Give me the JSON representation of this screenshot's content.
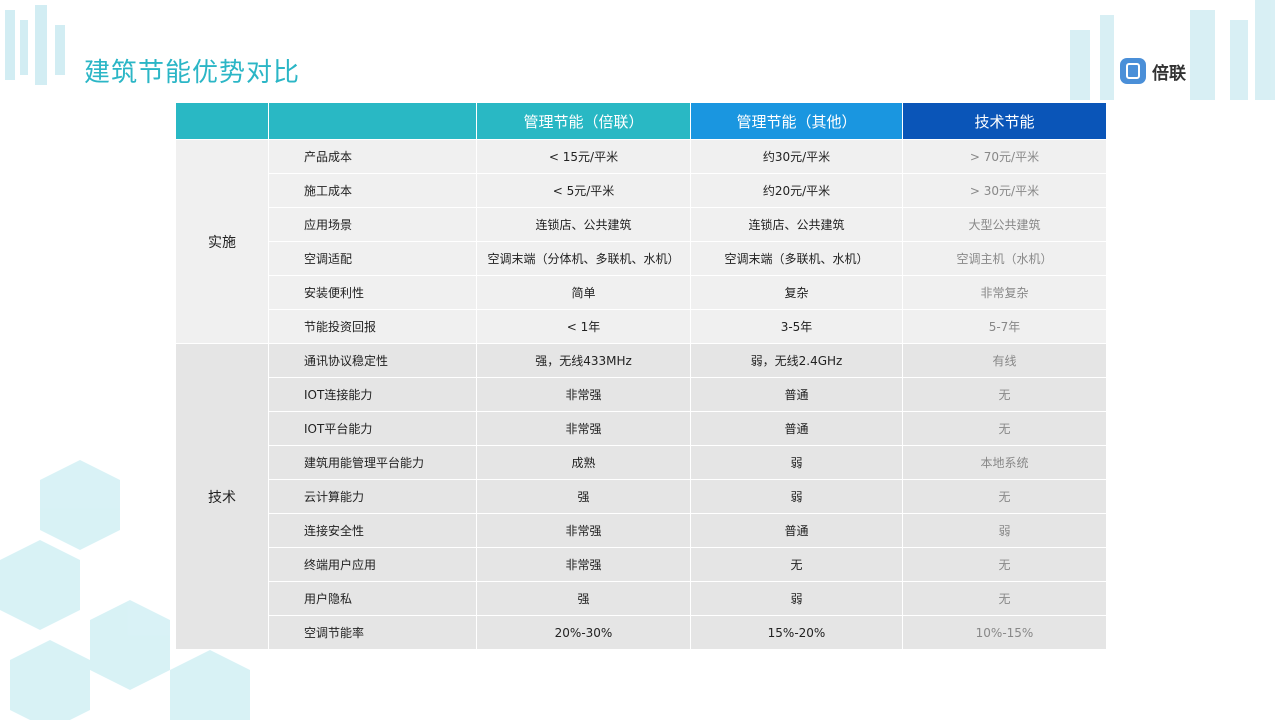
{
  "title": "建筑节能优势对比",
  "logo": {
    "text": "倍联"
  },
  "colors": {
    "title": "#2bb6c6",
    "header_teal": "#29b8c4",
    "header_blue": "#1a96e0",
    "header_dark_blue": "#0a55b8"
  },
  "table": {
    "headers": [
      "",
      "",
      "管理节能（倍联）",
      "管理节能（其他）",
      "技术节能"
    ],
    "groups": [
      {
        "name": "实施",
        "rows": [
          [
            "产品成本",
            "< 15元/平米",
            "约30元/平米",
            "> 70元/平米"
          ],
          [
            "施工成本",
            "< 5元/平米",
            "约20元/平米",
            "> 30元/平米"
          ],
          [
            "应用场景",
            "连锁店、公共建筑",
            "连锁店、公共建筑",
            "大型公共建筑"
          ],
          [
            "空调适配",
            "空调末端（分体机、多联机、水机）",
            "空调末端（多联机、水机）",
            "空调主机（水机）"
          ],
          [
            "安装便利性",
            "简单",
            "复杂",
            "非常复杂"
          ],
          [
            "节能投资回报",
            "< 1年",
            "3-5年",
            "5-7年"
          ]
        ]
      },
      {
        "name": "技术",
        "rows": [
          [
            "通讯协议稳定性",
            "强，无线433MHz",
            "弱，无线2.4GHz",
            "有线"
          ],
          [
            "IOT连接能力",
            "非常强",
            "普通",
            "无"
          ],
          [
            "IOT平台能力",
            "非常强",
            "普通",
            "无"
          ],
          [
            "建筑用能管理平台能力",
            "成熟",
            "弱",
            "本地系统"
          ],
          [
            "云计算能力",
            "强",
            "弱",
            "无"
          ],
          [
            "连接安全性",
            "非常强",
            "普通",
            "弱"
          ],
          [
            "终端用户应用",
            "非常强",
            "无",
            "无"
          ],
          [
            "用户隐私",
            "强",
            "弱",
            "无"
          ],
          [
            "空调节能率",
            "20%-30%",
            "15%-20%",
            "10%-15%"
          ]
        ]
      }
    ]
  }
}
